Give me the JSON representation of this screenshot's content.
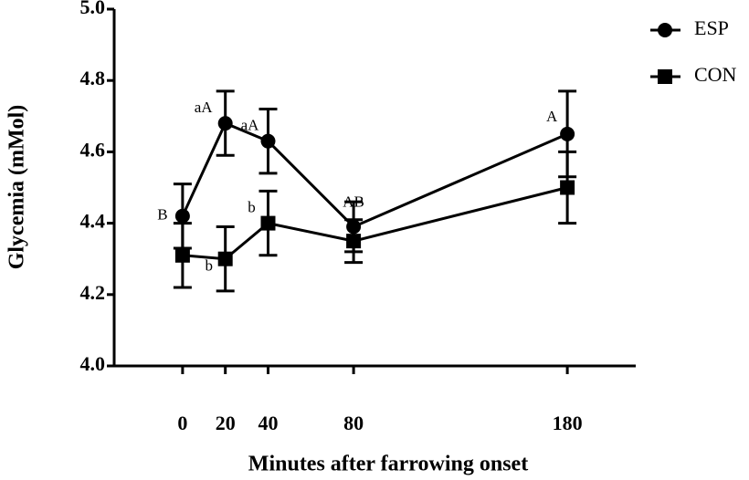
{
  "chart_data": {
    "type": "line",
    "x_label": "Minutes after farrowing onset",
    "y_label": "Glycemia (mMol)",
    "x": [
      0,
      20,
      40,
      80,
      180
    ],
    "xlim": [
      -32,
      212
    ],
    "xticks": [
      0,
      20,
      40,
      80,
      180
    ],
    "ylim": [
      4.0,
      5.0
    ],
    "yticks": [
      {
        "value": 4.0,
        "label": "4.0"
      },
      4.2,
      4.4,
      4.6,
      4.8,
      {
        "value": 5.0,
        "label": "5.0"
      }
    ],
    "legend": "top-right",
    "series": [
      {
        "name": "ESP",
        "color": "#000000",
        "marker": "circle",
        "values": [
          4.42,
          4.68,
          4.63,
          4.39,
          4.65
        ],
        "errors": [
          0.09,
          0.09,
          0.09,
          0.07,
          0.12
        ],
        "annotations": [
          "B",
          "aA",
          "aA",
          "AB",
          "A"
        ]
      },
      {
        "name": "CON",
        "color": "#000000",
        "marker": "square",
        "values": [
          4.31,
          4.3,
          4.4,
          4.35,
          4.5
        ],
        "errors": [
          0.09,
          0.09,
          0.09,
          0.06,
          0.1
        ],
        "annotations": [
          null,
          "b",
          "b",
          null,
          null
        ]
      }
    ]
  }
}
